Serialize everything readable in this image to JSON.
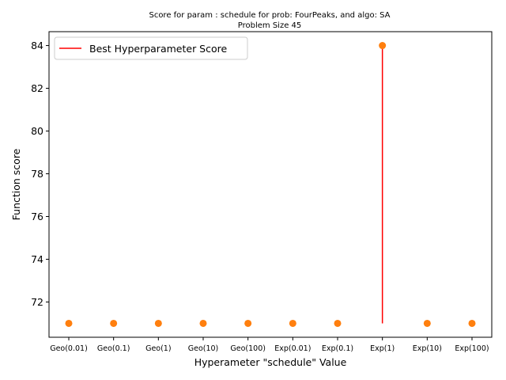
{
  "chart_data": {
    "type": "scatter",
    "title": "Score for param : schedule for prob: FourPeaks, and algo: SA",
    "subtitle": "Problem Size 45",
    "xlabel": "Hyperameter \"schedule\" Value",
    "ylabel": "Function score",
    "categories": [
      "Geo(0.01)",
      "Geo(0.1)",
      "Geo(1)",
      "Geo(10)",
      "Geo(100)",
      "Exp(0.01)",
      "Exp(0.1)",
      "Exp(1)",
      "Exp(10)",
      "Exp(100)"
    ],
    "values": [
      71,
      71,
      71,
      71,
      71,
      71,
      71,
      84,
      71,
      71
    ],
    "ylim": [
      70.35,
      84.65
    ],
    "yticks": [
      72,
      74,
      76,
      78,
      80,
      82,
      84
    ],
    "point_color": "#ff7f0e",
    "best": {
      "label": "Best Hyperparameter Score",
      "category_index": 7,
      "from": 71,
      "to": 84,
      "color": "#ff0000"
    },
    "legend_position": "top-left",
    "grid": false
  }
}
